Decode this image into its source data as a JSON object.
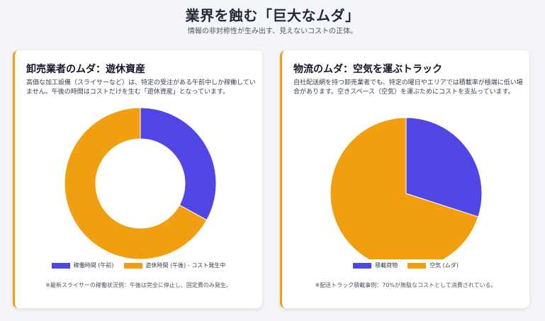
{
  "header": {
    "title": "業界を蝕む「巨大なムダ」",
    "subtitle": "情報の非対称性が生み出す、見えないコストの正体。"
  },
  "colors": {
    "primary": "#5046e5",
    "accent": "#f29f0f"
  },
  "left_card": {
    "title": "卸売業者のムダ：遊休資産",
    "description": "高価な加工設備（スライサーなど）は、特定の受注がある午前中しか稼働していません。午後の時間はコストだけを生む「遊休資産」となっています。",
    "note": "※最新スライサーの稼働状況例：午後は完全に停止し、固定費のみ発生。"
  },
  "right_card": {
    "title": "物流のムダ：空気を運ぶトラック",
    "description": "自社配送網を持つ卸売業者でも、特定の曜日やエリアでは積載率が極端に低い場合があります。空きスペース（空気）を運ぶためにコストを支払っています。",
    "note": "※配送トラック積載事例：70%が無駄なコストとして消費されている。"
  },
  "chart_data": [
    {
      "type": "pie",
      "variant": "doughnut",
      "labels": [
        "稼働時間 (午前)",
        "遊休時間 (午後) - コスト発生中"
      ],
      "values": [
        33,
        67
      ],
      "colors": [
        "#5046e5",
        "#f29f0f"
      ],
      "legend": "bottom"
    },
    {
      "type": "pie",
      "labels": [
        "積載荷物",
        "空気 (ムダ)"
      ],
      "values": [
        30,
        70
      ],
      "colors": [
        "#5046e5",
        "#f29f0f"
      ],
      "legend": "bottom"
    }
  ]
}
